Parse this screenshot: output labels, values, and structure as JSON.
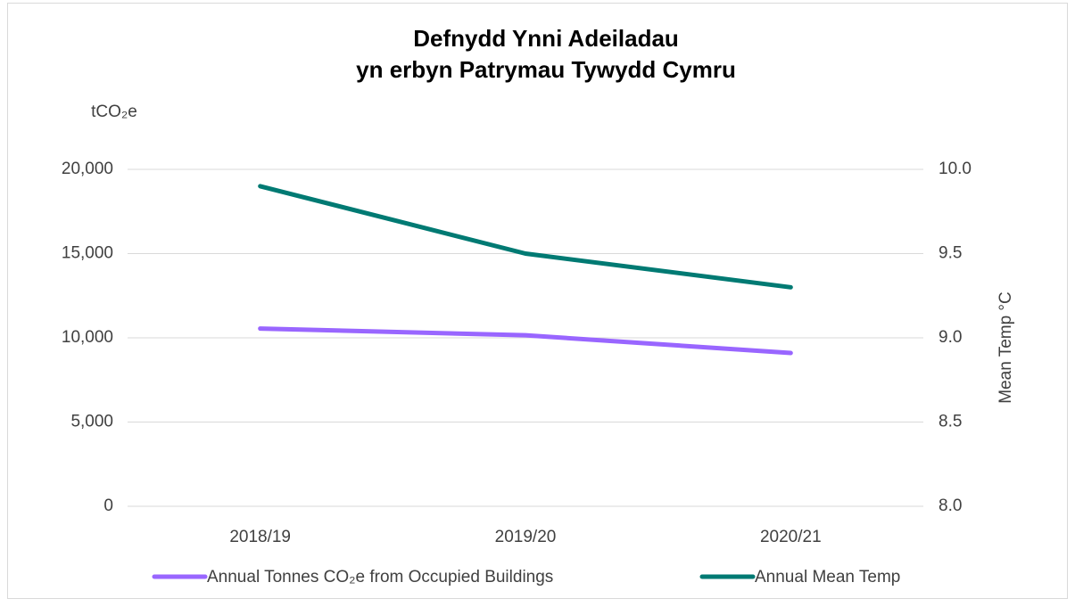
{
  "chart_data": {
    "type": "line",
    "title": [
      "Defnydd Ynni Adeiladau",
      "yn erbyn Patrymau Tywydd Cymru"
    ],
    "y_label": "tCO₂e",
    "y2_label": "Mean Temp °C",
    "categories": [
      "2018/19",
      "2019/20",
      "2020/21"
    ],
    "series": [
      {
        "name": "Annual Tonnes CO₂e from Occupied Buildings",
        "color": "#9966ff",
        "values": [
          10550,
          10150,
          9100
        ]
      },
      {
        "name": "Annual Mean Temp",
        "color": "#007a73",
        "values": [
          9.9,
          9.5,
          9.3
        ],
        "axis": "y2"
      }
    ],
    "ylim": [
      0,
      20000
    ],
    "yticks": [
      0,
      {
        "value": 5000,
        "label": "5,000"
      },
      {
        "value": 10000,
        "label": "10,000"
      },
      {
        "value": 15000,
        "label": "15,000"
      },
      {
        "value": 20000,
        "label": "20,000"
      }
    ],
    "y2lim": [
      8,
      10
    ],
    "y2ticks": [
      {
        "value": 8,
        "label": "8.0"
      },
      8.5,
      {
        "value": 9,
        "label": "9.0"
      },
      9.5,
      {
        "value": 10,
        "label": "10.0"
      }
    ],
    "grid": true,
    "legend": "bottom"
  }
}
